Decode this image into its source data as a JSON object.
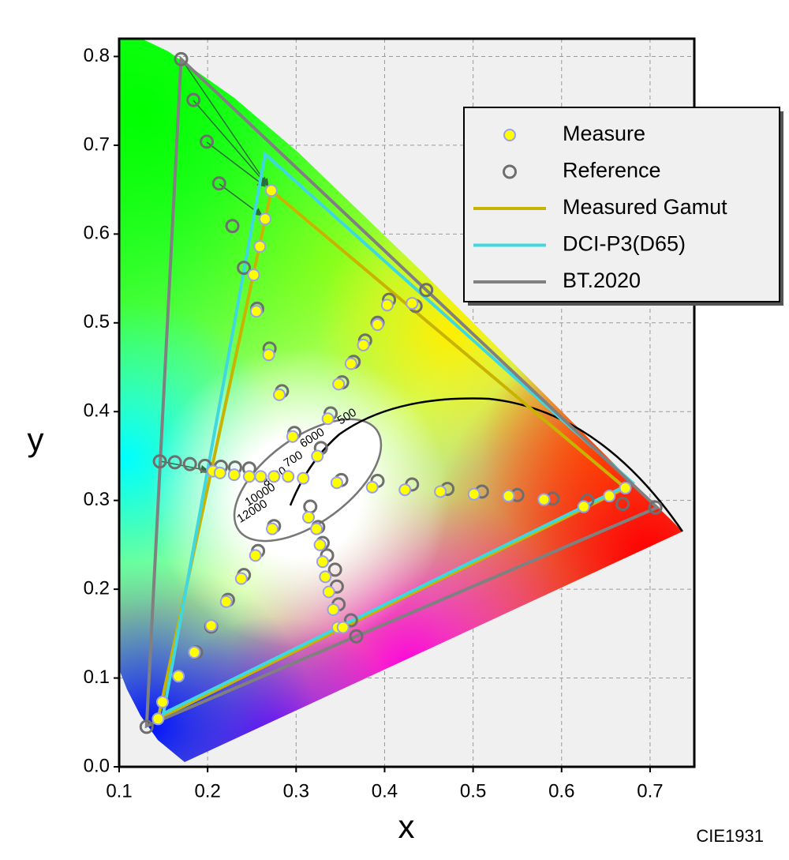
{
  "chart_data": {
    "type": "scatter",
    "xlabel": "x",
    "ylabel": "y",
    "note": "CIE1931",
    "xlim": [
      0.1,
      0.75
    ],
    "ylim": [
      0,
      0.82
    ],
    "xticks": [
      0.1,
      0.2,
      0.3,
      0.4,
      0.5,
      0.6,
      0.7
    ],
    "yticks": [
      {
        "value": 0,
        "label": "0.0"
      },
      0.1,
      0.2,
      0.3,
      0.4,
      0.5,
      0.6,
      0.7,
      0.8
    ],
    "grid": true,
    "legend": "upper right",
    "cct_labels": [
      "500",
      "6000",
      "700",
      "8000",
      "10000",
      "12000"
    ],
    "series": [
      {
        "name": "Measured Gamut",
        "kind": "line",
        "color": "#c8b400",
        "x": [
          0.272,
          0.672,
          0.144
        ],
        "values": [
          0.649,
          0.314,
          0.054
        ]
      },
      {
        "name": "DCI-P3(D65)",
        "kind": "line",
        "color": "#40d8e0",
        "x": [
          0.265,
          0.68,
          0.15
        ],
        "values": [
          0.69,
          0.32,
          0.06
        ]
      },
      {
        "name": "BT.2020",
        "kind": "line",
        "color": "#808080",
        "x": [
          0.17,
          0.708,
          0.131
        ],
        "values": [
          0.797,
          0.292,
          0.046
        ]
      },
      {
        "name": "Reference",
        "kind": "circle",
        "color": "#6e6e6e",
        "x": [
          0.17,
          0.184,
          0.199,
          0.213,
          0.228,
          0.241,
          0.256,
          0.27,
          0.284,
          0.298,
          0.146,
          0.163,
          0.18,
          0.197,
          0.215,
          0.231,
          0.247,
          0.351,
          0.392,
          0.431,
          0.471,
          0.51,
          0.55,
          0.59,
          0.629,
          0.669,
          0.706,
          0.316,
          0.325,
          0.33,
          0.335,
          0.344,
          0.346,
          0.348,
          0.362,
          0.368,
          0.275,
          0.257,
          0.241,
          0.223,
          0.204,
          0.187,
          0.131,
          0.328,
          0.339,
          0.352,
          0.365,
          0.378,
          0.392,
          0.405,
          0.435,
          0.447
        ],
        "values": [
          0.797,
          0.751,
          0.704,
          0.657,
          0.609,
          0.562,
          0.516,
          0.471,
          0.423,
          0.376,
          0.344,
          0.343,
          0.341,
          0.339,
          0.338,
          0.337,
          0.336,
          0.323,
          0.322,
          0.318,
          0.313,
          0.31,
          0.306,
          0.302,
          0.3,
          0.296,
          0.292,
          0.293,
          0.27,
          0.252,
          0.238,
          0.222,
          0.203,
          0.183,
          0.165,
          0.147,
          0.271,
          0.243,
          0.216,
          0.188,
          0.158,
          0.129,
          0.045,
          0.359,
          0.398,
          0.433,
          0.456,
          0.48,
          0.5,
          0.526,
          0.519,
          0.537
        ]
      },
      {
        "name": "Measure",
        "kind": "dot",
        "color": "#ffff00",
        "edge": "#9aa0e8",
        "x": [
          0.272,
          0.265,
          0.259,
          0.252,
          0.255,
          0.269,
          0.281,
          0.296,
          0.308,
          0.206,
          0.214,
          0.23,
          0.247,
          0.26,
          0.275,
          0.291,
          0.346,
          0.386,
          0.423,
          0.463,
          0.501,
          0.54,
          0.58,
          0.625,
          0.654,
          0.672,
          0.314,
          0.323,
          0.327,
          0.33,
          0.333,
          0.337,
          0.342,
          0.347,
          0.353,
          0.273,
          0.254,
          0.238,
          0.221,
          0.204,
          0.185,
          0.167,
          0.149,
          0.144,
          0.324,
          0.336,
          0.348,
          0.362,
          0.376,
          0.392,
          0.403,
          0.431
        ],
        "values": [
          0.649,
          0.617,
          0.586,
          0.554,
          0.513,
          0.464,
          0.419,
          0.372,
          0.325,
          0.333,
          0.331,
          0.329,
          0.327,
          0.327,
          0.327,
          0.327,
          0.32,
          0.315,
          0.312,
          0.31,
          0.307,
          0.305,
          0.301,
          0.293,
          0.305,
          0.314,
          0.281,
          0.268,
          0.25,
          0.231,
          0.214,
          0.197,
          0.177,
          0.157,
          0.157,
          0.268,
          0.238,
          0.212,
          0.186,
          0.159,
          0.129,
          0.102,
          0.073,
          0.054,
          0.35,
          0.392,
          0.431,
          0.454,
          0.475,
          0.498,
          0.52,
          0.522
        ]
      }
    ]
  }
}
